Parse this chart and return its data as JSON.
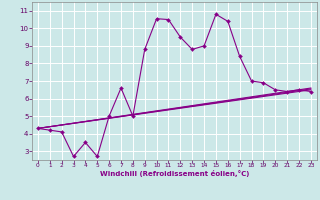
{
  "background_color": "#cce8e8",
  "grid_color": "#ffffff",
  "line_color": "#880088",
  "x_label": "Windchill (Refroidissement éolien,°C)",
  "y_ticks": [
    3,
    4,
    5,
    6,
    7,
    8,
    9,
    10,
    11
  ],
  "x_ticks": [
    0,
    1,
    2,
    3,
    4,
    5,
    6,
    7,
    8,
    9,
    10,
    11,
    12,
    13,
    14,
    15,
    16,
    17,
    18,
    19,
    20,
    21,
    22,
    23
  ],
  "xlim": [
    -0.5,
    23.5
  ],
  "ylim": [
    2.5,
    11.5
  ],
  "main_x": [
    0,
    1,
    2,
    3,
    4,
    5,
    6,
    7,
    8,
    9,
    10,
    11,
    12,
    13,
    14,
    15,
    16,
    17,
    18,
    19,
    20,
    21,
    22,
    23
  ],
  "main_y": [
    4.3,
    4.2,
    4.1,
    2.7,
    3.5,
    2.7,
    5.0,
    6.6,
    5.0,
    8.8,
    10.55,
    10.5,
    9.5,
    8.8,
    9.0,
    10.8,
    10.4,
    8.4,
    7.0,
    6.9,
    6.5,
    6.4,
    6.5,
    6.4
  ],
  "trend_lines": [
    {
      "x": [
        0,
        23
      ],
      "y": [
        4.3,
        6.5
      ]
    },
    {
      "x": [
        0,
        23
      ],
      "y": [
        4.3,
        6.55
      ]
    },
    {
      "x": [
        0,
        23
      ],
      "y": [
        4.3,
        6.6
      ]
    }
  ]
}
